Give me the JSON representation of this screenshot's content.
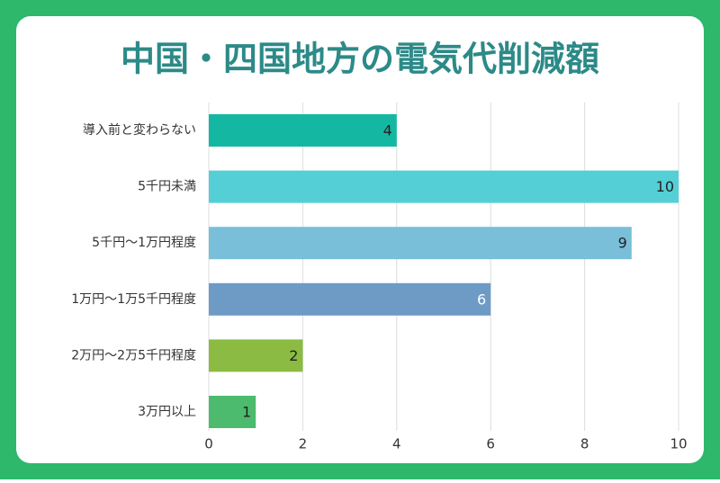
{
  "chart_data": {
    "type": "hbar",
    "title": "中国・四国地方の電気代削減額",
    "categories": [
      "導入前と変わらない",
      "5千円未満",
      "5千円〜1万円程度",
      "1万円〜1万5千円程度",
      "2万円〜2万5千円程度",
      "3万円以上"
    ],
    "values": [
      4,
      10,
      9,
      6,
      2,
      1
    ],
    "colors": [
      "#14b8a2",
      "#55cfd6",
      "#79bfd9",
      "#6e9bc6",
      "#8bbb42",
      "#4cbb6d"
    ],
    "label_colors": [
      "#222222",
      "#222222",
      "#222222",
      "#ffffff",
      "#222222",
      "#222222"
    ],
    "xlim": [
      0,
      10
    ],
    "xticks": [
      0,
      2,
      4,
      6,
      8,
      10
    ],
    "grid": true
  }
}
